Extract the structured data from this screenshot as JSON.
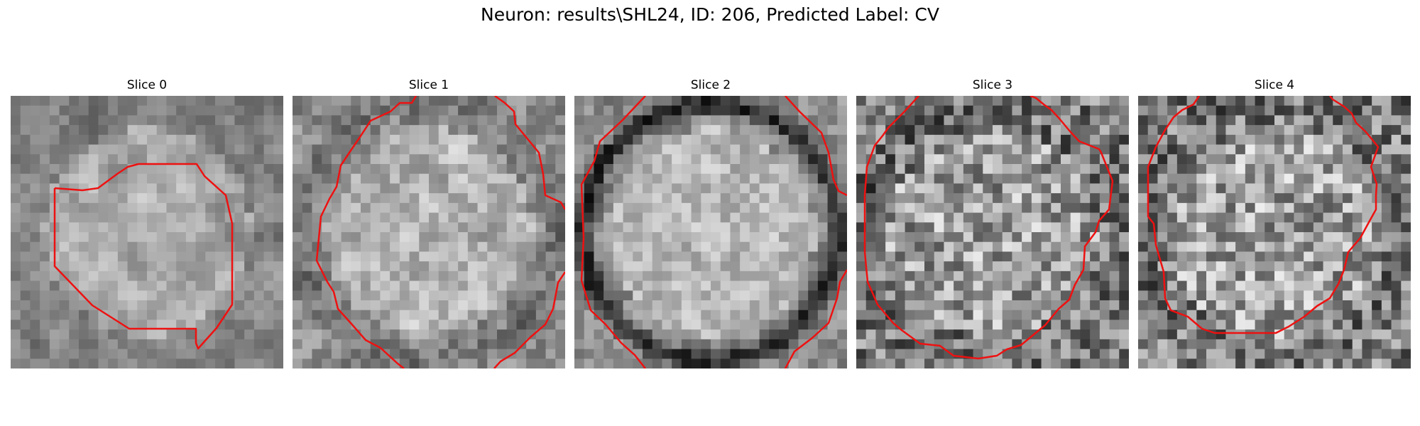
{
  "figure": {
    "title": "Neuron: results\\SHL24, ID: 206, Predicted Label: CV"
  },
  "panels": [
    {
      "title": "Slice 0",
      "mean": 150,
      "contrast": 55,
      "ring": 0,
      "blur": 0.65,
      "seed": 11
    },
    {
      "title": "Slice 1",
      "mean": 160,
      "contrast": 55,
      "ring": 0.2,
      "blur": 0.45,
      "seed": 23
    },
    {
      "title": "Slice 2",
      "mean": 165,
      "contrast": 45,
      "ring": 1,
      "blur": 0.35,
      "seed": 37
    },
    {
      "title": "Slice 3",
      "mean": 140,
      "contrast": 75,
      "ring": 0.1,
      "blur": 0.1,
      "seed": 51
    },
    {
      "title": "Slice 4",
      "mean": 145,
      "contrast": 75,
      "ring": 0.1,
      "blur": 0.1,
      "seed": 67
    }
  ],
  "colors": {
    "contour": "#ee1111",
    "background": "#ffffff"
  }
}
